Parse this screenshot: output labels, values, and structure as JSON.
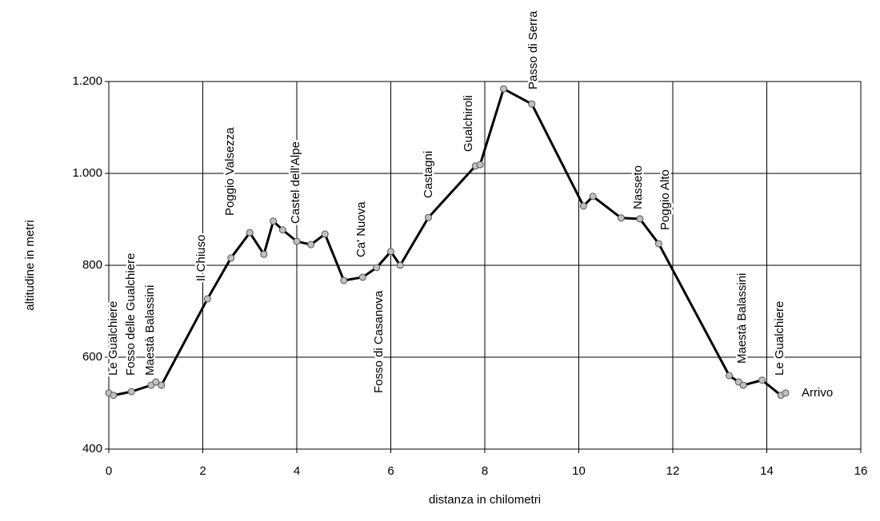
{
  "chart_data": {
    "type": "line",
    "x_label": "distanza in chilometri",
    "y_label": "altitudine  in metri",
    "x": [
      0,
      0.1,
      0.48,
      0.9,
      1.0,
      1.12,
      2.1,
      2.6,
      3.0,
      3.3,
      3.5,
      3.7,
      4.0,
      4.3,
      4.6,
      5.0,
      5.4,
      5.7,
      6.0,
      6.2,
      6.8,
      7.8,
      7.9,
      8.4,
      9.0,
      10.1,
      10.3,
      10.9,
      11.3,
      11.7,
      13.2,
      13.4,
      13.5,
      13.9,
      14.3,
      14.4
    ],
    "series": [
      {
        "color": "#000000",
        "marker_color": "#c0c0c0",
        "values": [
          522,
          517,
          525,
          539,
          546,
          539,
          727,
          816,
          871,
          824,
          896,
          877,
          852,
          845,
          868,
          767,
          774,
          795,
          830,
          800,
          904,
          1016,
          1019,
          1184,
          1151,
          929,
          950,
          903,
          901,
          847,
          560,
          546,
          539,
          550,
          517,
          522
        ]
      }
    ],
    "xlim": [
      0,
      16
    ],
    "xticks": [
      0,
      2,
      4,
      6,
      8,
      10,
      12,
      14,
      16
    ],
    "ylim": [
      400,
      1200
    ],
    "yticks": [
      400,
      600,
      800,
      {
        "value": 1000,
        "label": "1.000"
      },
      {
        "value": 1200,
        "label": "1.200"
      }
    ],
    "grid": true,
    "annotations": [
      "Le Gualchiere",
      "Fosso delle Gualchiere",
      "Maestà Balassini",
      "Il Chiuso",
      "Poggio Valsezza",
      "Castel dell'Alpe",
      "Ca' Nuova",
      "Fosso di Casanova",
      "Castagni",
      "Gualchiroli",
      "Passo di Serra",
      "Nasseto",
      "Poggio Alto",
      "Maestà Balassini",
      "Le Gualchiere",
      "Arrivo"
    ]
  }
}
